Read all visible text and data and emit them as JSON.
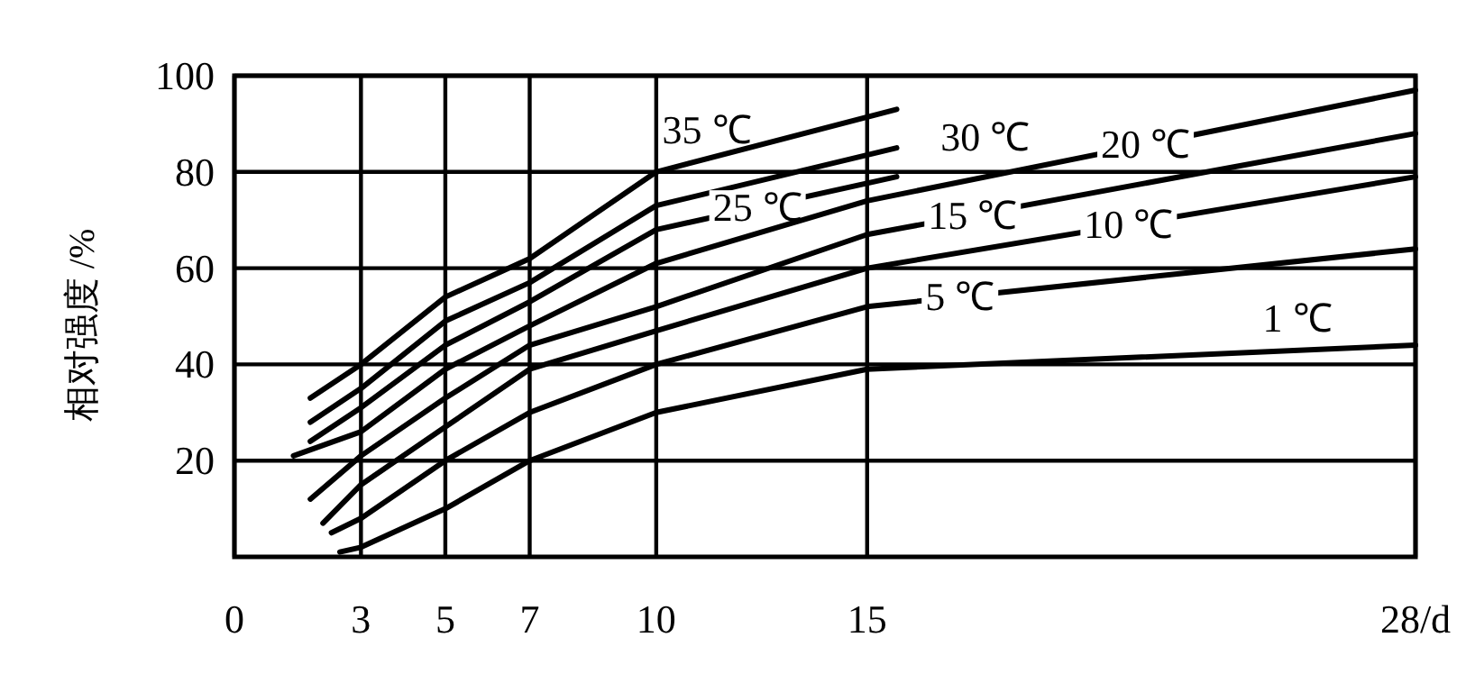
{
  "chart_data": {
    "type": "line",
    "ylabel": "相对强度 /%",
    "xlim": [
      0,
      28
    ],
    "xticks": [
      0,
      3,
      5,
      7,
      10,
      15,
      {
        "value": 28,
        "label": "28/d"
      }
    ],
    "ylim": [
      0,
      100
    ],
    "yticks": [
      20,
      40,
      60,
      80,
      100
    ],
    "grid": true,
    "legend": false,
    "marker": "none",
    "line_style": "solid",
    "series": [
      {
        "name": "35 ℃",
        "color": "#000000",
        "x": [
          1.8,
          3,
          5,
          7,
          10,
          15.7
        ],
        "values": [
          33,
          40,
          54,
          62,
          80,
          93
        ]
      },
      {
        "name": "30 ℃",
        "color": "#000000",
        "x": [
          1.8,
          3,
          5,
          7,
          10,
          15.7
        ],
        "values": [
          28,
          35,
          49,
          57,
          73,
          85
        ]
      },
      {
        "name": "25 ℃",
        "color": "#000000",
        "x": [
          1.8,
          3,
          5,
          7,
          10,
          15.7
        ],
        "values": [
          24,
          31,
          44,
          53,
          68,
          79
        ]
      },
      {
        "name": "20 ℃",
        "color": "#000000",
        "x": [
          1.4,
          3,
          5,
          7,
          10,
          15,
          28
        ],
        "values": [
          21,
          26,
          39,
          48,
          61,
          74,
          97
        ]
      },
      {
        "name": "15 ℃",
        "color": "#000000",
        "x": [
          1.8,
          3,
          5,
          7,
          10,
          15,
          28
        ],
        "values": [
          12,
          21,
          33,
          44,
          52,
          67,
          88
        ]
      },
      {
        "name": "10 ℃",
        "color": "#000000",
        "x": [
          2.1,
          3,
          5,
          7,
          10,
          15,
          28
        ],
        "values": [
          7,
          15,
          27,
          39,
          47,
          60,
          79
        ]
      },
      {
        "name": "5 ℃",
        "color": "#000000",
        "x": [
          2.3,
          3,
          5,
          7,
          10,
          15,
          28
        ],
        "values": [
          5,
          8,
          20,
          30,
          40,
          52,
          64
        ]
      },
      {
        "name": "1 ℃",
        "color": "#000000",
        "x": [
          2.5,
          3,
          5,
          7,
          10,
          15,
          28
        ],
        "values": [
          1,
          2,
          10,
          20,
          30,
          39,
          44
        ]
      }
    ]
  }
}
